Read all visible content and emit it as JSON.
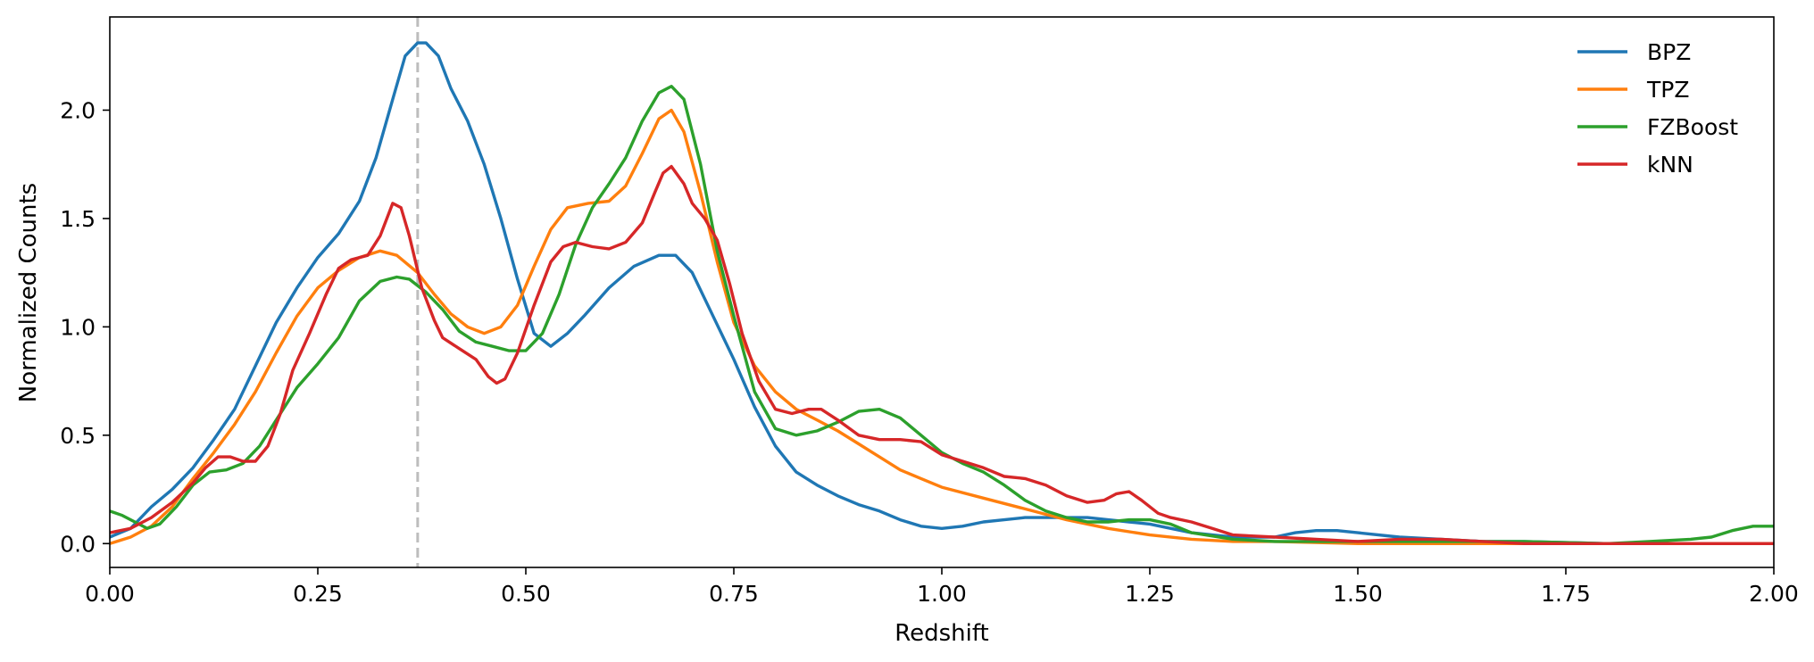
{
  "chart_data": {
    "type": "line",
    "title": "",
    "xlabel": "Redshift",
    "ylabel": "Normalized Counts",
    "xlim": [
      0,
      2
    ],
    "ylim": [
      -0.11,
      2.43
    ],
    "xticks": [
      "0.00",
      "0.25",
      "0.50",
      "0.75",
      "1.00",
      "1.25",
      "1.50",
      "1.75",
      "2.00"
    ],
    "yticks": [
      "0.0",
      "0.5",
      "1.0",
      "1.5",
      "2.0"
    ],
    "grid": false,
    "legend_position": "top-right",
    "reference_line": {
      "x": 0.37,
      "style": "dashed",
      "color": "#bdbdbd"
    },
    "series": [
      {
        "name": "BPZ",
        "color": "#1f77b4",
        "points": [
          [
            0,
            0.03
          ],
          [
            0.025,
            0.07
          ],
          [
            0.05,
            0.17
          ],
          [
            0.075,
            0.25
          ],
          [
            0.1,
            0.35
          ],
          [
            0.125,
            0.48
          ],
          [
            0.15,
            0.62
          ],
          [
            0.175,
            0.82
          ],
          [
            0.2,
            1.02
          ],
          [
            0.225,
            1.18
          ],
          [
            0.25,
            1.32
          ],
          [
            0.275,
            1.43
          ],
          [
            0.3,
            1.58
          ],
          [
            0.32,
            1.78
          ],
          [
            0.34,
            2.05
          ],
          [
            0.355,
            2.25
          ],
          [
            0.37,
            2.31
          ],
          [
            0.38,
            2.31
          ],
          [
            0.395,
            2.25
          ],
          [
            0.41,
            2.1
          ],
          [
            0.43,
            1.95
          ],
          [
            0.45,
            1.75
          ],
          [
            0.47,
            1.5
          ],
          [
            0.49,
            1.22
          ],
          [
            0.51,
            0.97
          ],
          [
            0.53,
            0.91
          ],
          [
            0.55,
            0.97
          ],
          [
            0.57,
            1.05
          ],
          [
            0.6,
            1.18
          ],
          [
            0.63,
            1.28
          ],
          [
            0.66,
            1.33
          ],
          [
            0.68,
            1.33
          ],
          [
            0.7,
            1.25
          ],
          [
            0.725,
            1.05
          ],
          [
            0.75,
            0.85
          ],
          [
            0.775,
            0.63
          ],
          [
            0.8,
            0.45
          ],
          [
            0.825,
            0.33
          ],
          [
            0.85,
            0.27
          ],
          [
            0.875,
            0.22
          ],
          [
            0.9,
            0.18
          ],
          [
            0.925,
            0.15
          ],
          [
            0.95,
            0.11
          ],
          [
            0.975,
            0.08
          ],
          [
            1.0,
            0.07
          ],
          [
            1.025,
            0.08
          ],
          [
            1.05,
            0.1
          ],
          [
            1.075,
            0.11
          ],
          [
            1.1,
            0.12
          ],
          [
            1.125,
            0.12
          ],
          [
            1.15,
            0.12
          ],
          [
            1.175,
            0.12
          ],
          [
            1.2,
            0.11
          ],
          [
            1.225,
            0.1
          ],
          [
            1.25,
            0.09
          ],
          [
            1.3,
            0.05
          ],
          [
            1.35,
            0.03
          ],
          [
            1.4,
            0.03
          ],
          [
            1.425,
            0.05
          ],
          [
            1.45,
            0.06
          ],
          [
            1.475,
            0.06
          ],
          [
            1.5,
            0.05
          ],
          [
            1.55,
            0.03
          ],
          [
            1.6,
            0.02
          ],
          [
            1.65,
            0.01
          ],
          [
            1.7,
            0.01
          ],
          [
            1.8,
            0.0
          ],
          [
            1.9,
            0.0
          ],
          [
            2.0,
            0.0
          ]
        ]
      },
      {
        "name": "TPZ",
        "color": "#ff7f0e",
        "points": [
          [
            0,
            0.0
          ],
          [
            0.025,
            0.03
          ],
          [
            0.05,
            0.08
          ],
          [
            0.075,
            0.17
          ],
          [
            0.1,
            0.3
          ],
          [
            0.125,
            0.42
          ],
          [
            0.15,
            0.55
          ],
          [
            0.175,
            0.7
          ],
          [
            0.2,
            0.88
          ],
          [
            0.225,
            1.05
          ],
          [
            0.25,
            1.18
          ],
          [
            0.275,
            1.26
          ],
          [
            0.3,
            1.32
          ],
          [
            0.325,
            1.35
          ],
          [
            0.345,
            1.33
          ],
          [
            0.37,
            1.25
          ],
          [
            0.39,
            1.15
          ],
          [
            0.41,
            1.06
          ],
          [
            0.43,
            1.0
          ],
          [
            0.45,
            0.97
          ],
          [
            0.47,
            1.0
          ],
          [
            0.49,
            1.1
          ],
          [
            0.51,
            1.28
          ],
          [
            0.53,
            1.45
          ],
          [
            0.55,
            1.55
          ],
          [
            0.575,
            1.57
          ],
          [
            0.6,
            1.58
          ],
          [
            0.62,
            1.65
          ],
          [
            0.64,
            1.8
          ],
          [
            0.66,
            1.96
          ],
          [
            0.675,
            2.0
          ],
          [
            0.69,
            1.9
          ],
          [
            0.71,
            1.62
          ],
          [
            0.73,
            1.3
          ],
          [
            0.75,
            1.02
          ],
          [
            0.775,
            0.82
          ],
          [
            0.8,
            0.7
          ],
          [
            0.825,
            0.62
          ],
          [
            0.85,
            0.57
          ],
          [
            0.875,
            0.52
          ],
          [
            0.9,
            0.46
          ],
          [
            0.925,
            0.4
          ],
          [
            0.95,
            0.34
          ],
          [
            0.975,
            0.3
          ],
          [
            1.0,
            0.26
          ],
          [
            1.05,
            0.21
          ],
          [
            1.1,
            0.16
          ],
          [
            1.15,
            0.11
          ],
          [
            1.2,
            0.07
          ],
          [
            1.25,
            0.04
          ],
          [
            1.3,
            0.02
          ],
          [
            1.35,
            0.01
          ],
          [
            1.4,
            0.01
          ],
          [
            1.5,
            0.0
          ],
          [
            1.6,
            0.0
          ],
          [
            1.7,
            0.0
          ],
          [
            1.8,
            0.0
          ],
          [
            1.9,
            0.0
          ],
          [
            2.0,
            0.0
          ]
        ]
      },
      {
        "name": "FZBoost",
        "color": "#2ca02c",
        "points": [
          [
            0,
            0.15
          ],
          [
            0.015,
            0.13
          ],
          [
            0.03,
            0.1
          ],
          [
            0.045,
            0.07
          ],
          [
            0.06,
            0.09
          ],
          [
            0.08,
            0.17
          ],
          [
            0.1,
            0.27
          ],
          [
            0.12,
            0.33
          ],
          [
            0.14,
            0.34
          ],
          [
            0.16,
            0.37
          ],
          [
            0.18,
            0.45
          ],
          [
            0.2,
            0.57
          ],
          [
            0.225,
            0.72
          ],
          [
            0.25,
            0.83
          ],
          [
            0.275,
            0.95
          ],
          [
            0.3,
            1.12
          ],
          [
            0.325,
            1.21
          ],
          [
            0.345,
            1.23
          ],
          [
            0.36,
            1.22
          ],
          [
            0.38,
            1.16
          ],
          [
            0.4,
            1.08
          ],
          [
            0.42,
            0.98
          ],
          [
            0.44,
            0.93
          ],
          [
            0.46,
            0.91
          ],
          [
            0.48,
            0.89
          ],
          [
            0.5,
            0.89
          ],
          [
            0.52,
            0.97
          ],
          [
            0.54,
            1.15
          ],
          [
            0.56,
            1.38
          ],
          [
            0.58,
            1.55
          ],
          [
            0.6,
            1.66
          ],
          [
            0.62,
            1.78
          ],
          [
            0.64,
            1.95
          ],
          [
            0.66,
            2.08
          ],
          [
            0.675,
            2.11
          ],
          [
            0.69,
            2.05
          ],
          [
            0.71,
            1.75
          ],
          [
            0.73,
            1.35
          ],
          [
            0.75,
            1.05
          ],
          [
            0.775,
            0.7
          ],
          [
            0.8,
            0.53
          ],
          [
            0.825,
            0.5
          ],
          [
            0.85,
            0.52
          ],
          [
            0.875,
            0.56
          ],
          [
            0.9,
            0.61
          ],
          [
            0.925,
            0.62
          ],
          [
            0.95,
            0.58
          ],
          [
            0.975,
            0.5
          ],
          [
            1.0,
            0.42
          ],
          [
            1.025,
            0.37
          ],
          [
            1.05,
            0.33
          ],
          [
            1.075,
            0.27
          ],
          [
            1.1,
            0.2
          ],
          [
            1.125,
            0.15
          ],
          [
            1.15,
            0.12
          ],
          [
            1.175,
            0.1
          ],
          [
            1.2,
            0.1
          ],
          [
            1.225,
            0.11
          ],
          [
            1.25,
            0.11
          ],
          [
            1.275,
            0.09
          ],
          [
            1.3,
            0.05
          ],
          [
            1.35,
            0.02
          ],
          [
            1.4,
            0.01
          ],
          [
            1.5,
            0.01
          ],
          [
            1.6,
            0.01
          ],
          [
            1.7,
            0.01
          ],
          [
            1.8,
            0.0
          ],
          [
            1.85,
            0.01
          ],
          [
            1.9,
            0.02
          ],
          [
            1.925,
            0.03
          ],
          [
            1.95,
            0.06
          ],
          [
            1.975,
            0.08
          ],
          [
            2.0,
            0.08
          ]
        ]
      },
      {
        "name": "kNN",
        "color": "#d62728",
        "points": [
          [
            0,
            0.05
          ],
          [
            0.025,
            0.07
          ],
          [
            0.05,
            0.12
          ],
          [
            0.075,
            0.19
          ],
          [
            0.1,
            0.28
          ],
          [
            0.115,
            0.35
          ],
          [
            0.13,
            0.4
          ],
          [
            0.145,
            0.4
          ],
          [
            0.16,
            0.38
          ],
          [
            0.175,
            0.38
          ],
          [
            0.19,
            0.45
          ],
          [
            0.205,
            0.6
          ],
          [
            0.22,
            0.8
          ],
          [
            0.24,
            0.97
          ],
          [
            0.26,
            1.15
          ],
          [
            0.275,
            1.27
          ],
          [
            0.29,
            1.31
          ],
          [
            0.31,
            1.33
          ],
          [
            0.325,
            1.42
          ],
          [
            0.34,
            1.57
          ],
          [
            0.35,
            1.55
          ],
          [
            0.36,
            1.42
          ],
          [
            0.375,
            1.18
          ],
          [
            0.39,
            1.03
          ],
          [
            0.4,
            0.95
          ],
          [
            0.42,
            0.9
          ],
          [
            0.44,
            0.85
          ],
          [
            0.455,
            0.77
          ],
          [
            0.465,
            0.74
          ],
          [
            0.475,
            0.76
          ],
          [
            0.49,
            0.88
          ],
          [
            0.51,
            1.1
          ],
          [
            0.53,
            1.3
          ],
          [
            0.545,
            1.37
          ],
          [
            0.56,
            1.39
          ],
          [
            0.58,
            1.37
          ],
          [
            0.6,
            1.36
          ],
          [
            0.62,
            1.39
          ],
          [
            0.64,
            1.48
          ],
          [
            0.655,
            1.62
          ],
          [
            0.665,
            1.71
          ],
          [
            0.675,
            1.74
          ],
          [
            0.69,
            1.66
          ],
          [
            0.7,
            1.57
          ],
          [
            0.715,
            1.5
          ],
          [
            0.73,
            1.4
          ],
          [
            0.745,
            1.2
          ],
          [
            0.76,
            0.97
          ],
          [
            0.78,
            0.75
          ],
          [
            0.8,
            0.62
          ],
          [
            0.82,
            0.6
          ],
          [
            0.84,
            0.62
          ],
          [
            0.855,
            0.62
          ],
          [
            0.875,
            0.57
          ],
          [
            0.9,
            0.5
          ],
          [
            0.925,
            0.48
          ],
          [
            0.95,
            0.48
          ],
          [
            0.975,
            0.47
          ],
          [
            1.0,
            0.41
          ],
          [
            1.025,
            0.38
          ],
          [
            1.05,
            0.35
          ],
          [
            1.075,
            0.31
          ],
          [
            1.1,
            0.3
          ],
          [
            1.125,
            0.27
          ],
          [
            1.15,
            0.22
          ],
          [
            1.175,
            0.19
          ],
          [
            1.195,
            0.2
          ],
          [
            1.21,
            0.23
          ],
          [
            1.225,
            0.24
          ],
          [
            1.24,
            0.2
          ],
          [
            1.26,
            0.14
          ],
          [
            1.275,
            0.12
          ],
          [
            1.3,
            0.1
          ],
          [
            1.325,
            0.07
          ],
          [
            1.35,
            0.04
          ],
          [
            1.4,
            0.03
          ],
          [
            1.45,
            0.02
          ],
          [
            1.5,
            0.01
          ],
          [
            1.55,
            0.02
          ],
          [
            1.6,
            0.02
          ],
          [
            1.65,
            0.01
          ],
          [
            1.7,
            0.0
          ],
          [
            1.8,
            0.0
          ],
          [
            1.9,
            0.0
          ],
          [
            2.0,
            0.0
          ]
        ]
      }
    ]
  }
}
